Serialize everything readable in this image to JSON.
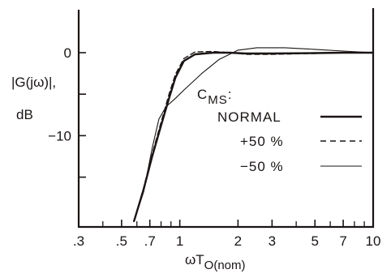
{
  "chart_data": {
    "type": "line",
    "x_scale": "log",
    "xlim": [
      0.3,
      10
    ],
    "ylim": [
      -21,
      5
    ],
    "grid": false,
    "legend_position": "right",
    "legend_title": "C",
    "legend_title_sub": "MS",
    "legend_title_suffix": ":",
    "ylabel_lines": [
      "|G(jω)|,",
      "dB"
    ],
    "xlabel": "ωT",
    "xlabel_sub": "O(nom)",
    "x_ticks": [
      {
        "value": 0.3,
        "label": ".3"
      },
      {
        "value": 0.5,
        "label": ".5"
      },
      {
        "value": 0.7,
        "label": ".7"
      },
      {
        "value": 1,
        "label": "1"
      },
      {
        "value": 2,
        "label": "2"
      },
      {
        "value": 3,
        "label": "3"
      },
      {
        "value": 5,
        "label": "5"
      },
      {
        "value": 7,
        "label": "7"
      },
      {
        "value": 10,
        "label": "10"
      }
    ],
    "x_minor_ticks": [
      0.4,
      0.6,
      0.8,
      0.9,
      4,
      6,
      8,
      9
    ],
    "y_ticks": [
      {
        "value": 0,
        "label": "0"
      },
      {
        "value": -5,
        "label": ""
      },
      {
        "value": -10,
        "label": "−10"
      },
      {
        "value": -15,
        "label": ""
      }
    ],
    "series": [
      {
        "name": "NORMAL",
        "style": "solid-thick",
        "x": [
          0.58,
          0.65,
          0.72,
          0.8,
          0.88,
          0.95,
          1.05,
          1.2,
          1.5,
          1.8,
          2.2,
          3,
          5,
          7,
          10
        ],
        "y": [
          -20.3,
          -16.5,
          -12.5,
          -8.8,
          -5.5,
          -3.0,
          -1.0,
          -0.2,
          0.0,
          0.0,
          -0.1,
          -0.1,
          -0.05,
          0.0,
          0.0
        ]
      },
      {
        "name": "+50 %",
        "style": "dashed",
        "x": [
          0.58,
          0.65,
          0.72,
          0.8,
          0.88,
          0.95,
          1.05,
          1.2,
          1.5,
          1.8,
          2.2,
          3,
          5,
          7,
          10
        ],
        "y": [
          -20.3,
          -16.3,
          -12.2,
          -8.4,
          -5.0,
          -2.6,
          -0.7,
          0.1,
          0.15,
          0.0,
          -0.2,
          -0.2,
          -0.1,
          0.0,
          0.0
        ]
      },
      {
        "name": "−50 %",
        "style": "solid-thin",
        "x": [
          0.58,
          0.65,
          0.72,
          0.78,
          0.85,
          0.95,
          1.05,
          1.3,
          1.6,
          2.0,
          2.5,
          3.5,
          5,
          7,
          10
        ],
        "y": [
          -20.3,
          -16.8,
          -11.5,
          -8.0,
          -6.5,
          -5.5,
          -4.5,
          -2.5,
          -0.8,
          0.3,
          0.6,
          0.6,
          0.4,
          0.2,
          0.0
        ]
      }
    ]
  }
}
